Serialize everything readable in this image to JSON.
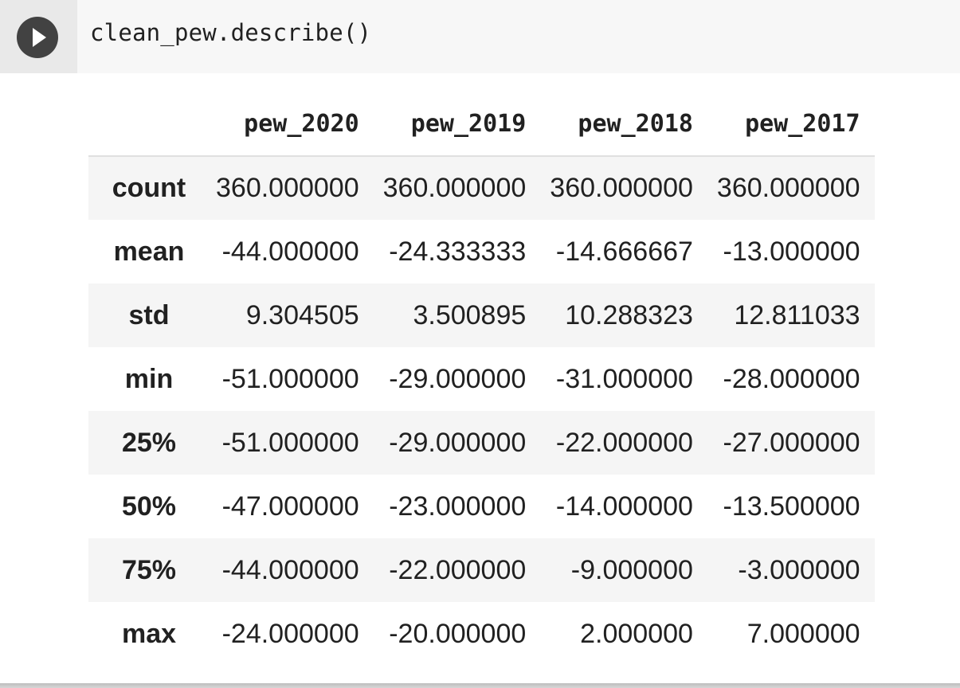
{
  "cell": {
    "code": "clean_pew.describe()",
    "run_icon": "play-icon"
  },
  "table": {
    "columns": [
      "pew_2020",
      "pew_2019",
      "pew_2018",
      "pew_2017"
    ],
    "rows": [
      {
        "label": "count",
        "values": [
          "360.000000",
          "360.000000",
          "360.000000",
          "360.000000"
        ]
      },
      {
        "label": "mean",
        "values": [
          "-44.000000",
          "-24.333333",
          "-14.666667",
          "-13.000000"
        ]
      },
      {
        "label": "std",
        "values": [
          "9.304505",
          "3.500895",
          "10.288323",
          "12.811033"
        ]
      },
      {
        "label": "min",
        "values": [
          "-51.000000",
          "-29.000000",
          "-31.000000",
          "-28.000000"
        ]
      },
      {
        "label": "25%",
        "values": [
          "-51.000000",
          "-29.000000",
          "-22.000000",
          "-27.000000"
        ]
      },
      {
        "label": "50%",
        "values": [
          "-47.000000",
          "-23.000000",
          "-14.000000",
          "-13.500000"
        ]
      },
      {
        "label": "75%",
        "values": [
          "-44.000000",
          "-22.000000",
          "-9.000000",
          "-3.000000"
        ]
      },
      {
        "label": "max",
        "values": [
          "-24.000000",
          "-20.000000",
          "2.000000",
          "7.000000"
        ]
      }
    ]
  }
}
